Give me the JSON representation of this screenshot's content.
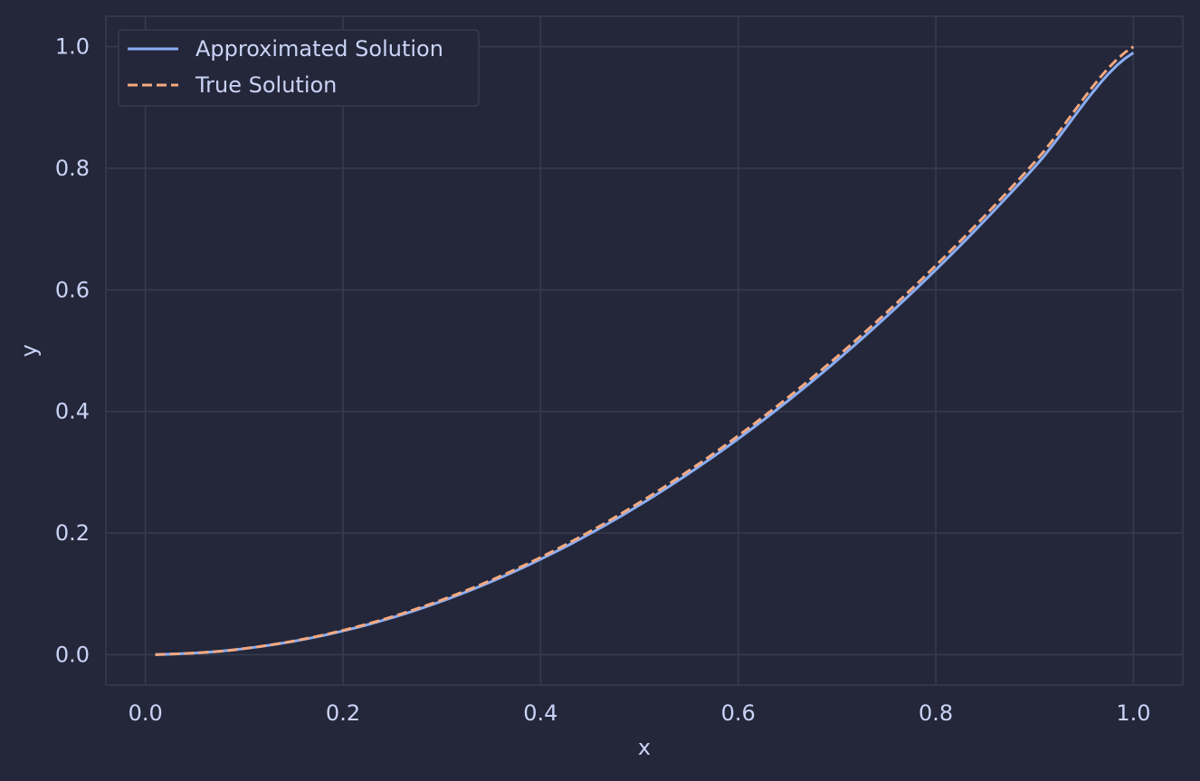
{
  "colors": {
    "background": "#24273a",
    "grid": "#363a4f",
    "text": "#cad3f5",
    "legend_border": "#363a4f",
    "approximated": "#8aadf4",
    "true": "#f5a97f"
  },
  "chart_data": {
    "type": "line",
    "title": "",
    "xlabel": "x",
    "ylabel": "y",
    "xlim": [
      -0.04,
      1.05
    ],
    "ylim": [
      -0.05,
      1.05
    ],
    "xticks": [
      "0.0",
      "0.2",
      "0.4",
      "0.6",
      "0.8",
      "1.0"
    ],
    "yticks": [
      "0.0",
      "0.2",
      "0.4",
      "0.6",
      "0.8",
      "1.0"
    ],
    "grid": true,
    "legend_position": "top-left",
    "series": [
      {
        "name": "Approximated Solution",
        "style": "solid",
        "color": "#8aadf4",
        "x": [
          0.01,
          0.1,
          0.2,
          0.3,
          0.4,
          0.5,
          0.6,
          0.7,
          0.8,
          0.9,
          1.0
        ],
        "y": [
          0.0,
          0.01,
          0.039,
          0.088,
          0.157,
          0.246,
          0.355,
          0.484,
          0.633,
          0.802,
          0.99
        ]
      },
      {
        "name": "True Solution",
        "style": "dashed",
        "color": "#f5a97f",
        "x": [
          0.01,
          0.1,
          0.2,
          0.3,
          0.4,
          0.5,
          0.6,
          0.7,
          0.8,
          0.9,
          1.0
        ],
        "y": [
          0.0001,
          0.01,
          0.04,
          0.09,
          0.16,
          0.25,
          0.36,
          0.49,
          0.64,
          0.81,
          1.0
        ]
      }
    ]
  }
}
